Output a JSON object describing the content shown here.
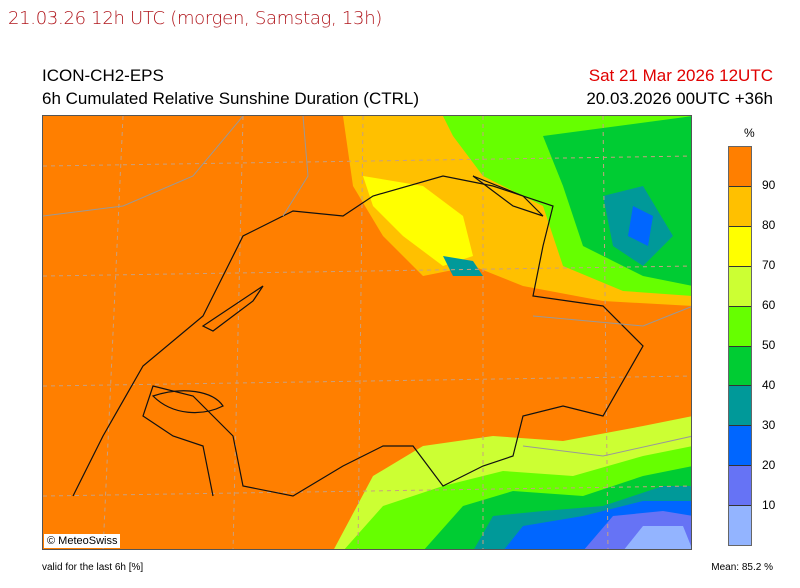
{
  "page_title": "21.03.26 12h UTC (morgen, Samstag, 13h)",
  "header": {
    "model": "ICON-CH2-EPS",
    "parameter": "6h Cumulated Relative Sunshine Duration (CTRL)",
    "valid_date": "Sat 21 Mar 2026 12UTC",
    "run": "20.03.2026 00UTC +36h"
  },
  "map": {
    "copyright": "© MeteoSwiss",
    "background_value_color": "#ff7f00"
  },
  "legend": {
    "unit": "%",
    "colors": [
      "#ff7f00",
      "#ffc000",
      "#ffff00",
      "#ccff33",
      "#66ff00",
      "#00cc33",
      "#009999",
      "#0066ff",
      "#6673f5",
      "#93b4ff"
    ],
    "ticks": [
      "90",
      "80",
      "70",
      "60",
      "50",
      "40",
      "30",
      "20",
      "10"
    ]
  },
  "footer": {
    "validity": "valid for the last 6h [%]",
    "mean": "Mean:  85.2 %"
  }
}
